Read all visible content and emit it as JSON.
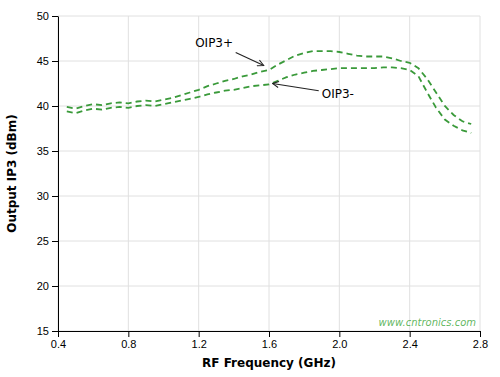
{
  "chart_data": {
    "type": "line",
    "x_label": "RF Frequency (GHz)",
    "y_label": "Output IP3 (dBm)",
    "x": [
      0.45,
      0.5,
      0.55,
      0.6,
      0.65,
      0.7,
      0.75,
      0.8,
      0.85,
      0.9,
      0.95,
      1.0,
      1.05,
      1.1,
      1.15,
      1.2,
      1.25,
      1.3,
      1.35,
      1.4,
      1.45,
      1.5,
      1.55,
      1.6,
      1.65,
      1.7,
      1.75,
      1.8,
      1.85,
      1.9,
      1.95,
      2.0,
      2.05,
      2.1,
      2.15,
      2.2,
      2.25,
      2.3,
      2.35,
      2.4,
      2.45,
      2.5,
      2.55,
      2.6,
      2.65,
      2.7,
      2.75
    ],
    "series": [
      {
        "color": "#3a9a3a",
        "line_style": "dashed",
        "values": [
          39.9,
          39.7,
          40.0,
          40.2,
          40.1,
          40.3,
          40.4,
          40.3,
          40.5,
          40.6,
          40.5,
          40.7,
          40.9,
          41.2,
          41.5,
          41.8,
          42.2,
          42.5,
          42.8,
          43.0,
          43.3,
          43.5,
          43.8,
          44.0,
          44.6,
          45.1,
          45.6,
          45.9,
          46.1,
          46.1,
          46.1,
          46.0,
          45.8,
          45.6,
          45.5,
          45.5,
          45.5,
          45.3,
          45.0,
          44.8,
          44.2,
          43.0,
          41.5,
          40.0,
          39.0,
          38.3,
          38.0
        ]
      },
      {
        "color": "#3a9a3a",
        "line_style": "dashed",
        "values": [
          39.4,
          39.2,
          39.5,
          39.7,
          39.6,
          39.8,
          39.9,
          39.8,
          40.0,
          40.1,
          40.0,
          40.2,
          40.4,
          40.6,
          40.8,
          41.0,
          41.3,
          41.5,
          41.7,
          41.8,
          42.0,
          42.2,
          42.3,
          42.4,
          42.8,
          43.2,
          43.5,
          43.7,
          43.9,
          44.0,
          44.1,
          44.2,
          44.2,
          44.2,
          44.2,
          44.2,
          44.3,
          44.3,
          44.2,
          44.0,
          43.3,
          41.5,
          39.8,
          38.5,
          37.8,
          37.3,
          37.0
        ]
      }
    ],
    "xlim": [
      0.4,
      2.8
    ],
    "ylim": [
      15,
      50
    ],
    "xticks": [
      0.4,
      0.8,
      1.2,
      1.6,
      {
        "value": 2.0,
        "label": "2.0"
      },
      2.4,
      2.8
    ],
    "yticks": [
      15,
      20,
      25,
      30,
      35,
      40,
      45,
      50
    ],
    "grid": true,
    "annotations": [
      {
        "text": "OIP3+",
        "x": 1.57,
        "y": 44.5,
        "text_x": 1.18,
        "text_y": 47.0
      },
      {
        "text": "OIP3-",
        "x": 1.62,
        "y": 42.5,
        "text_x": 1.9,
        "text_y": 41.3
      },
      {
        "text": "www.cntronics.com"
      }
    ]
  }
}
